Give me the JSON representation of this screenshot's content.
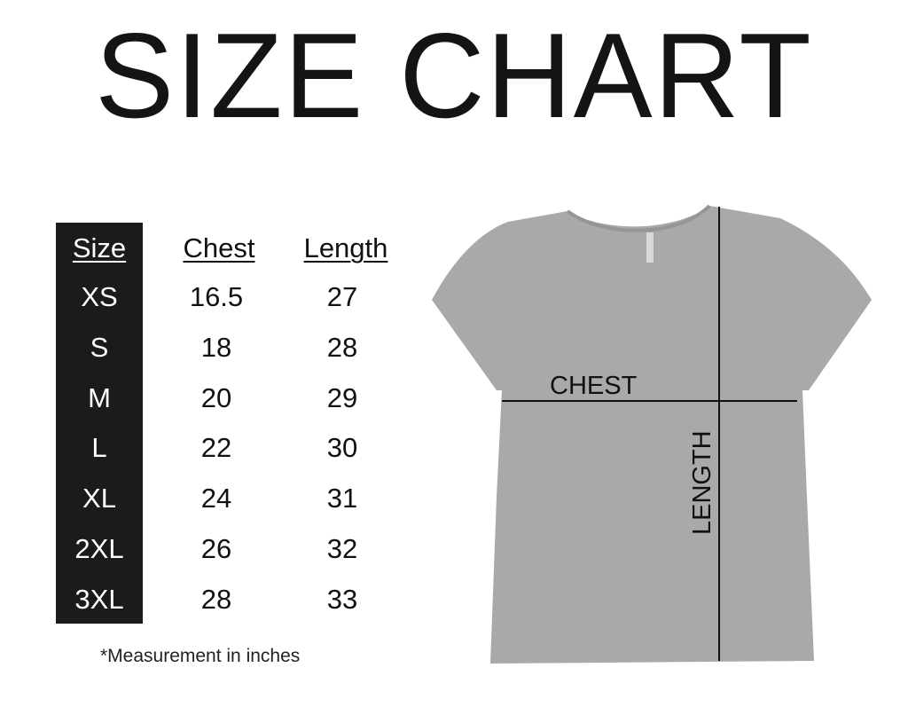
{
  "title": "SIZE CHART",
  "table": {
    "headers": [
      "Size",
      "Chest",
      "Length"
    ],
    "rows": [
      {
        "size": "XS",
        "chest": "16.5",
        "length": "27"
      },
      {
        "size": "S",
        "chest": "18",
        "length": "28"
      },
      {
        "size": "M",
        "chest": "20",
        "length": "29"
      },
      {
        "size": "L",
        "chest": "22",
        "length": "30"
      },
      {
        "size": "XL",
        "chest": "24",
        "length": "31"
      },
      {
        "size": "2XL",
        "chest": "26",
        "length": "32"
      },
      {
        "size": "3XL",
        "chest": "28",
        "length": "33"
      }
    ]
  },
  "note": "*Measurement in inches",
  "diagram": {
    "chest_label": "CHEST",
    "length_label": "LENGTH",
    "shirt_color": "#a9a9a9"
  }
}
